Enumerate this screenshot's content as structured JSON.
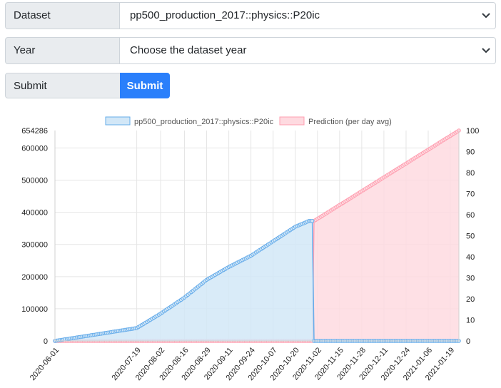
{
  "form": {
    "dataset_label": "Dataset",
    "dataset_value": "pp500_production_2017::physics::P20ic",
    "year_label": "Year",
    "year_value": "Choose the dataset year",
    "submit_label": "Submit",
    "submit_button": "Submit"
  },
  "colors": {
    "series1_fill": "#d2e7f7",
    "series1_line": "#66acea",
    "series2_fill": "#fedae0",
    "series2_line": "#ff9fb1"
  },
  "chart_data": {
    "type": "line",
    "legend_position": "top",
    "grid": true,
    "x_ticks": [
      "2020-06-01",
      "2020-07-19",
      "2020-08-02",
      "2020-08-16",
      "2020-08-29",
      "2020-09-11",
      "2020-09-24",
      "2020-10-07",
      "2020-10-20",
      "2020-11-02",
      "2020-11-15",
      "2020-11-28",
      "2020-12-11",
      "2020-12-24",
      "2021-01-06",
      "2021-01-19"
    ],
    "y_left": {
      "min": 0,
      "max": 654286,
      "ticks": [
        0,
        100000,
        200000,
        300000,
        400000,
        500000,
        600000,
        654286
      ]
    },
    "y_right": {
      "min": 0,
      "max": 100,
      "ticks": [
        0,
        10,
        20,
        30,
        40,
        50,
        60,
        70,
        80,
        90,
        100
      ]
    },
    "series": [
      {
        "name": "pp500_production_2017::physics::P20ic",
        "axis": "left",
        "points": [
          [
            "2020-06-01",
            0
          ],
          [
            "2020-07-19",
            40000
          ],
          [
            "2020-08-02",
            85000
          ],
          [
            "2020-08-16",
            135000
          ],
          [
            "2020-08-29",
            190000
          ],
          [
            "2020-09-11",
            230000
          ],
          [
            "2020-09-24",
            265000
          ],
          [
            "2020-10-07",
            310000
          ],
          [
            "2020-10-20",
            355000
          ],
          [
            "2020-10-28",
            373000
          ],
          [
            "2020-10-30",
            373000
          ],
          [
            "2020-10-31",
            0
          ],
          [
            "2021-01-24",
            0
          ]
        ]
      },
      {
        "name": "Prediction (per day avg)",
        "axis": "left",
        "points": [
          [
            "2020-06-01",
            0
          ],
          [
            "2020-10-30",
            0
          ],
          [
            "2020-10-31",
            373000
          ],
          [
            "2021-01-24",
            654286
          ]
        ]
      }
    ]
  }
}
